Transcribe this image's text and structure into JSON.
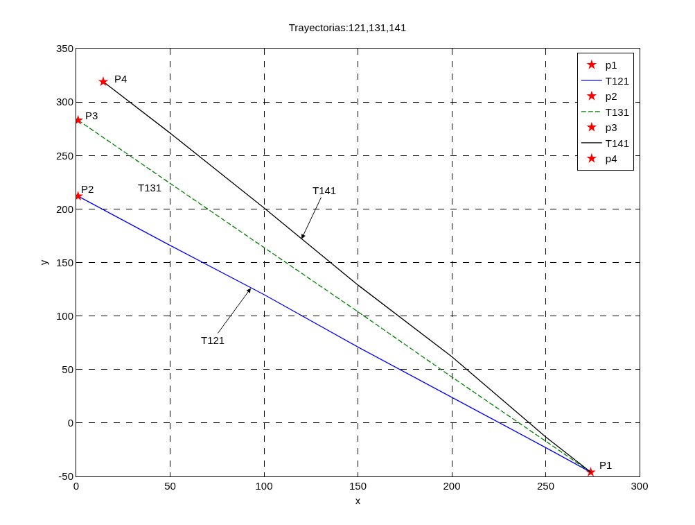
{
  "chart_data": {
    "type": "line",
    "title": "Trayectorias:121,131,141",
    "xlabel": "x",
    "ylabel": "y",
    "xlim": [
      0,
      300
    ],
    "xticks": [
      0,
      50,
      100,
      150,
      200,
      250,
      300
    ],
    "ylim": [
      -50,
      350
    ],
    "yticks": [
      -50,
      0,
      50,
      100,
      150,
      200,
      250,
      300,
      350
    ],
    "grid": true,
    "legend": "top right",
    "series": [
      {
        "name": "p1",
        "type": "scatter",
        "marker": "star",
        "color": "#ff0000",
        "x": [
          274
        ],
        "values": [
          -46
        ]
      },
      {
        "name": "T121",
        "type": "line",
        "line_style": "solid",
        "color": "#0000ff",
        "x": [
          1,
          50,
          100,
          150,
          200,
          250,
          274
        ],
        "values": [
          212,
          166,
          120,
          71,
          24,
          -23,
          -46
        ]
      },
      {
        "name": "p2",
        "type": "scatter",
        "marker": "star",
        "color": "#ff0000",
        "x": [
          1
        ],
        "values": [
          212
        ]
      },
      {
        "name": "T131",
        "type": "line",
        "line_style": "dashed",
        "color": "#008000",
        "x": [
          1,
          50,
          100,
          150,
          200,
          250,
          274
        ],
        "values": [
          283,
          224,
          164,
          104,
          43,
          -17,
          -46
        ]
      },
      {
        "name": "p3",
        "type": "scatter",
        "marker": "star",
        "color": "#ff0000",
        "x": [
          1
        ],
        "values": [
          283
        ]
      },
      {
        "name": "T141",
        "type": "line",
        "line_style": "solid",
        "color": "#000000",
        "x": [
          14.4,
          50,
          100,
          150,
          200,
          250,
          274
        ],
        "values": [
          319,
          271,
          201,
          129,
          62,
          -13,
          -46
        ]
      },
      {
        "name": "p4",
        "type": "scatter",
        "marker": "star",
        "color": "#ff0000",
        "x": [
          14.4
        ],
        "values": [
          319
        ]
      }
    ],
    "annotations": [
      {
        "text": "P1",
        "x": 274,
        "y": -46
      },
      {
        "text": "P2",
        "x": 1,
        "y": 212
      },
      {
        "text": "P3",
        "x": 1,
        "y": 283
      },
      {
        "text": "P4",
        "x": 14.4,
        "y": 319
      },
      "T131",
      {
        "text": "T141",
        "x": 120,
        "y": 172
      },
      {
        "text": "T121",
        "x": 93,
        "y": 126
      }
    ]
  }
}
